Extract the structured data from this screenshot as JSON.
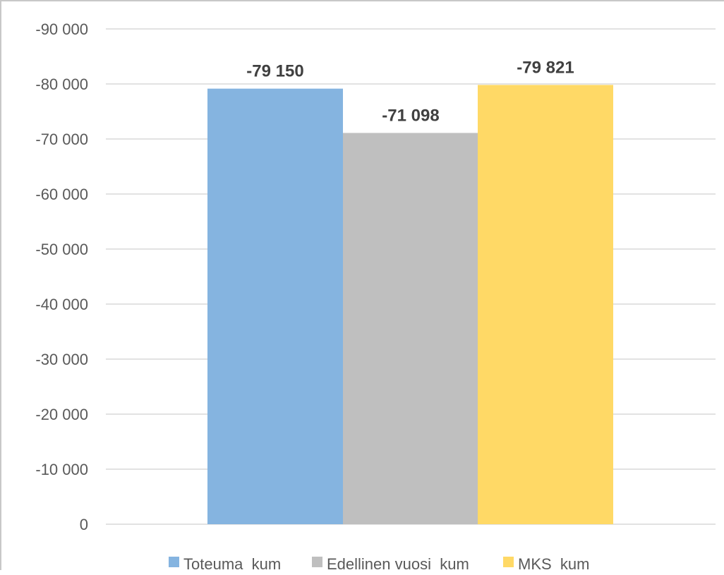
{
  "chart_data": {
    "type": "bar",
    "categories": [
      ""
    ],
    "series": [
      {
        "name": "Toteuma_kum",
        "values": [
          -79150
        ],
        "label": "-79 150",
        "color": "#85b4e0"
      },
      {
        "name": "Edellinen vuosi_kum",
        "values": [
          -71098
        ],
        "label": "-71 098",
        "color": "#bfbfbf"
      },
      {
        "name": "MKS_kum",
        "values": [
          -79821
        ],
        "label": "-79 821",
        "color": "#ffd966"
      }
    ],
    "ylim": [
      0,
      -90000
    ],
    "y_ticks": [
      0,
      -10000,
      -20000,
      -30000,
      -40000,
      -50000,
      -60000,
      -70000,
      -80000,
      -90000
    ],
    "y_tick_labels": [
      "0",
      "-10 000",
      "-20 000",
      "-30 000",
      "-40 000",
      "-50 000",
      "-60 000",
      "-70 000",
      "-80 000",
      "-90 000"
    ],
    "y_axis_reversed": true,
    "grid": true,
    "legend": "bottom"
  }
}
